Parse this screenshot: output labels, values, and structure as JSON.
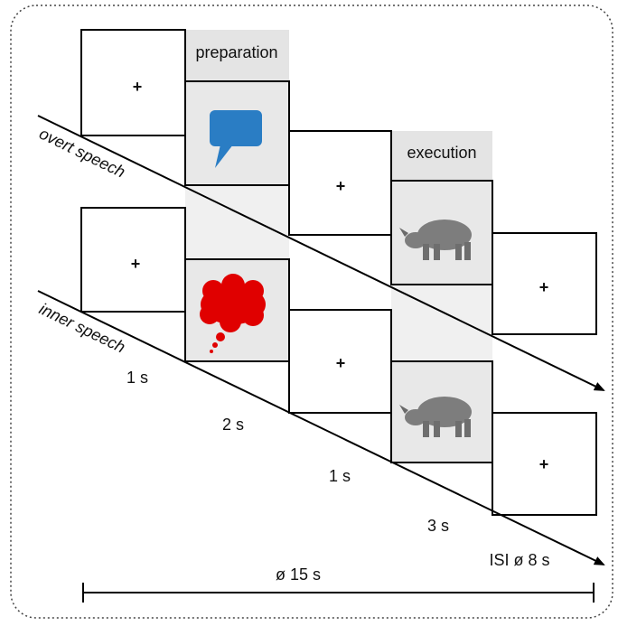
{
  "phases": [
    "preparation",
    "execution"
  ],
  "conditions": [
    "overt speech",
    "inner speech"
  ],
  "fixation_symbol": "+",
  "durations": [
    "1 s",
    "2 s",
    "1 s",
    "3 s"
  ],
  "isi": "ISI ø 8 s",
  "total": "ø 15 s"
}
